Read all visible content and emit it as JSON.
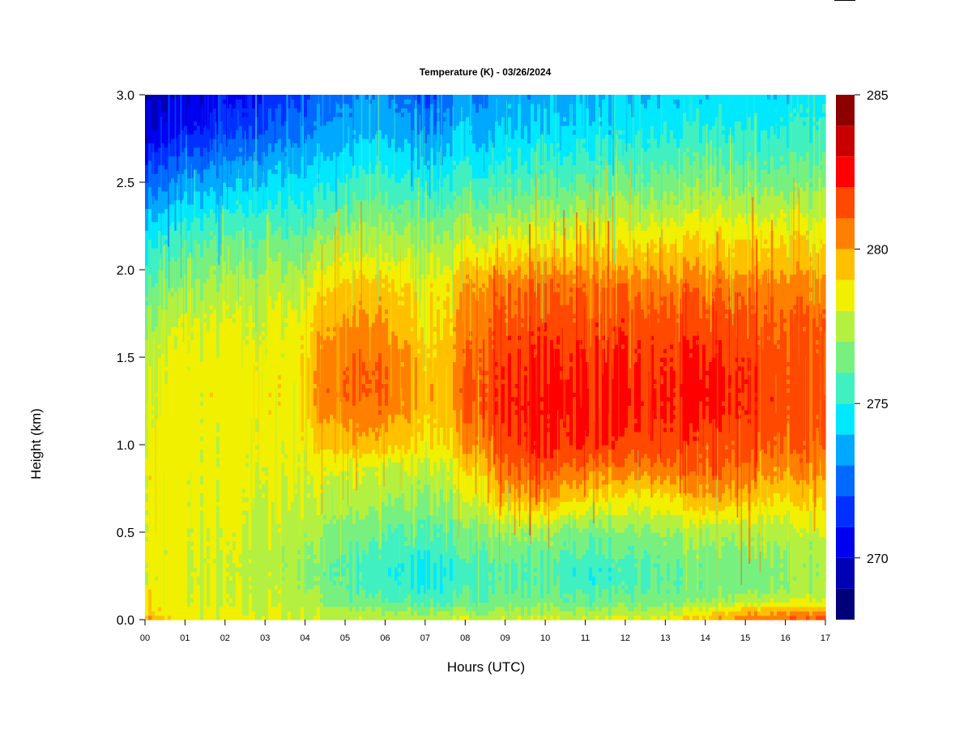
{
  "chart_data": {
    "type": "heatmap",
    "title": "Temperature (K) - 03/26/2024",
    "xlabel": "Hours (UTC)",
    "ylabel": "Height (km)",
    "x_ticks": [
      "00",
      "01",
      "02",
      "03",
      "04",
      "05",
      "06",
      "07",
      "08",
      "09",
      "10",
      "11",
      "12",
      "13",
      "14",
      "15",
      "16",
      "17"
    ],
    "y_ticks": [
      "0.0",
      "0.5",
      "1.0",
      "1.5",
      "2.0",
      "2.5",
      "3.0"
    ],
    "xlim": [
      0,
      17
    ],
    "ylim": [
      0,
      3
    ],
    "colorbar": {
      "ticks": [
        "270",
        "275",
        "280",
        "285"
      ],
      "range": [
        268,
        285
      ],
      "levels": [
        268,
        269,
        270,
        271,
        272,
        273,
        274,
        275,
        276,
        277,
        278,
        279,
        280,
        281,
        282,
        283,
        284,
        285
      ],
      "colors": [
        "#00007a",
        "#0000b4",
        "#0000f0",
        "#0030ff",
        "#006aff",
        "#00a8ff",
        "#00e8ff",
        "#40f0c0",
        "#78f080",
        "#b4f040",
        "#f0f000",
        "#ffc000",
        "#ff8000",
        "#ff4800",
        "#ff0000",
        "#c80000",
        "#8c0000"
      ]
    },
    "grid": false,
    "legend": "colorbar-right",
    "times_h": [
      0,
      0.5,
      1,
      2,
      3,
      4,
      4.5,
      5,
      6,
      7,
      7.7,
      8,
      9,
      10,
      11,
      12,
      13,
      14,
      15,
      16,
      17
    ],
    "heights_km": [
      0,
      0.05,
      0.1,
      0.2,
      0.3,
      0.5,
      0.7,
      0.9,
      1.0,
      1.2,
      1.3,
      1.5,
      1.7,
      1.9,
      2.0,
      2.2,
      2.4,
      2.6,
      2.8,
      3.0
    ],
    "temperature_K": [
      [
        280.0,
        278.8,
        278.5,
        278.3,
        278.2,
        278.0,
        277.8,
        277.8,
        277.6,
        277.6,
        277.8,
        277.8,
        278.0,
        278.0,
        278.0,
        278.0,
        278.2,
        279.5,
        280.5,
        281.0,
        281.0
      ],
      [
        279.5,
        278.6,
        278.3,
        278.0,
        278.0,
        277.8,
        277.5,
        277.4,
        277.0,
        277.0,
        277.0,
        277.0,
        277.2,
        277.2,
        277.2,
        277.2,
        277.5,
        278.5,
        279.5,
        280.0,
        280.0
      ],
      [
        279.0,
        278.5,
        278.2,
        277.8,
        277.8,
        277.5,
        277.0,
        276.5,
        276.0,
        275.8,
        275.8,
        276.0,
        276.5,
        276.5,
        276.3,
        276.3,
        276.5,
        277.0,
        277.5,
        278.0,
        278.0
      ],
      [
        278.5,
        278.3,
        278.0,
        277.8,
        277.8,
        277.2,
        276.5,
        276.0,
        275.3,
        275.0,
        275.3,
        275.5,
        276.0,
        276.0,
        275.5,
        275.5,
        276.0,
        276.3,
        276.5,
        276.8,
        277.0
      ],
      [
        278.5,
        278.3,
        278.0,
        277.8,
        277.5,
        277.0,
        276.3,
        275.8,
        275.2,
        274.8,
        275.2,
        275.5,
        276.0,
        275.8,
        275.3,
        275.5,
        276.0,
        276.3,
        276.5,
        276.8,
        277.0
      ],
      [
        278.5,
        278.3,
        278.3,
        278.0,
        277.8,
        277.5,
        277.0,
        276.5,
        276.0,
        275.8,
        276.0,
        276.5,
        277.2,
        277.0,
        276.5,
        276.5,
        277.0,
        277.2,
        277.3,
        277.5,
        277.8
      ],
      [
        278.5,
        278.5,
        278.3,
        278.3,
        278.0,
        278.0,
        277.8,
        277.5,
        277.2,
        277.0,
        277.2,
        277.8,
        279.5,
        280.0,
        279.0,
        278.5,
        278.8,
        280.0,
        279.5,
        279.0,
        279.0
      ],
      [
        278.5,
        278.5,
        278.5,
        278.3,
        278.2,
        278.3,
        278.5,
        278.2,
        278.0,
        278.0,
        278.3,
        279.0,
        281.0,
        281.5,
        281.0,
        280.8,
        281.0,
        281.3,
        281.0,
        280.5,
        280.5
      ],
      [
        278.3,
        278.5,
        278.5,
        278.3,
        278.3,
        278.5,
        279.5,
        279.5,
        279.5,
        279.0,
        279.0,
        280.0,
        281.5,
        282.0,
        282.0,
        281.5,
        281.5,
        281.5,
        281.3,
        281.0,
        280.8
      ],
      [
        278.0,
        278.3,
        278.5,
        278.5,
        278.5,
        279.0,
        280.5,
        280.5,
        280.5,
        279.5,
        279.5,
        281.0,
        282.0,
        282.5,
        282.3,
        282.0,
        282.0,
        282.2,
        282.0,
        281.5,
        281.0
      ],
      [
        278.0,
        278.3,
        278.5,
        278.5,
        278.5,
        279.0,
        281.0,
        281.0,
        281.0,
        279.5,
        279.8,
        281.0,
        282.0,
        282.5,
        282.3,
        282.0,
        282.0,
        282.5,
        282.0,
        281.5,
        281.0
      ],
      [
        277.5,
        278.0,
        278.3,
        278.3,
        278.3,
        278.8,
        280.5,
        280.8,
        280.8,
        279.3,
        279.5,
        280.8,
        281.8,
        282.0,
        282.0,
        281.8,
        281.8,
        282.0,
        281.8,
        281.3,
        281.0
      ],
      [
        277.0,
        277.5,
        278.0,
        278.0,
        278.0,
        278.5,
        280.0,
        280.0,
        280.0,
        279.0,
        279.3,
        280.5,
        281.3,
        281.5,
        281.5,
        281.5,
        281.3,
        281.5,
        281.3,
        281.0,
        280.8
      ],
      [
        276.0,
        276.5,
        277.0,
        277.3,
        277.5,
        277.8,
        279.0,
        279.3,
        279.3,
        278.5,
        279.0,
        280.0,
        280.8,
        281.0,
        280.8,
        280.8,
        280.5,
        280.8,
        280.8,
        280.5,
        280.3
      ],
      [
        275.5,
        276.0,
        276.5,
        276.8,
        277.0,
        277.3,
        278.3,
        278.5,
        278.5,
        278.0,
        278.3,
        279.3,
        279.8,
        280.0,
        280.0,
        279.8,
        279.8,
        280.0,
        279.8,
        279.8,
        279.5
      ],
      [
        274.5,
        275.0,
        275.5,
        275.8,
        276.0,
        276.3,
        277.0,
        277.2,
        277.3,
        277.0,
        277.2,
        277.5,
        278.0,
        278.2,
        278.3,
        278.3,
        278.5,
        278.8,
        278.8,
        278.8,
        278.5
      ],
      [
        273.0,
        273.5,
        274.0,
        274.3,
        274.7,
        275.0,
        275.5,
        275.8,
        276.0,
        275.5,
        275.8,
        276.0,
        276.3,
        276.5,
        276.8,
        276.8,
        277.0,
        277.3,
        277.3,
        277.3,
        277.0
      ],
      [
        271.5,
        272.0,
        272.5,
        273.0,
        273.5,
        274.0,
        274.3,
        274.5,
        274.8,
        274.3,
        274.5,
        274.8,
        275.0,
        275.3,
        275.5,
        275.5,
        275.8,
        276.0,
        276.0,
        276.0,
        275.8
      ],
      [
        270.0,
        270.3,
        270.8,
        271.3,
        272.0,
        272.8,
        273.3,
        273.5,
        273.8,
        273.0,
        273.5,
        273.8,
        274.0,
        274.3,
        274.5,
        274.5,
        274.8,
        275.0,
        275.0,
        275.0,
        275.0
      ],
      [
        269.5,
        269.7,
        270.0,
        270.5,
        271.0,
        272.0,
        272.5,
        272.8,
        273.0,
        272.0,
        272.8,
        273.0,
        273.3,
        273.5,
        273.8,
        273.8,
        274.0,
        274.3,
        274.3,
        274.3,
        274.3
      ]
    ]
  }
}
